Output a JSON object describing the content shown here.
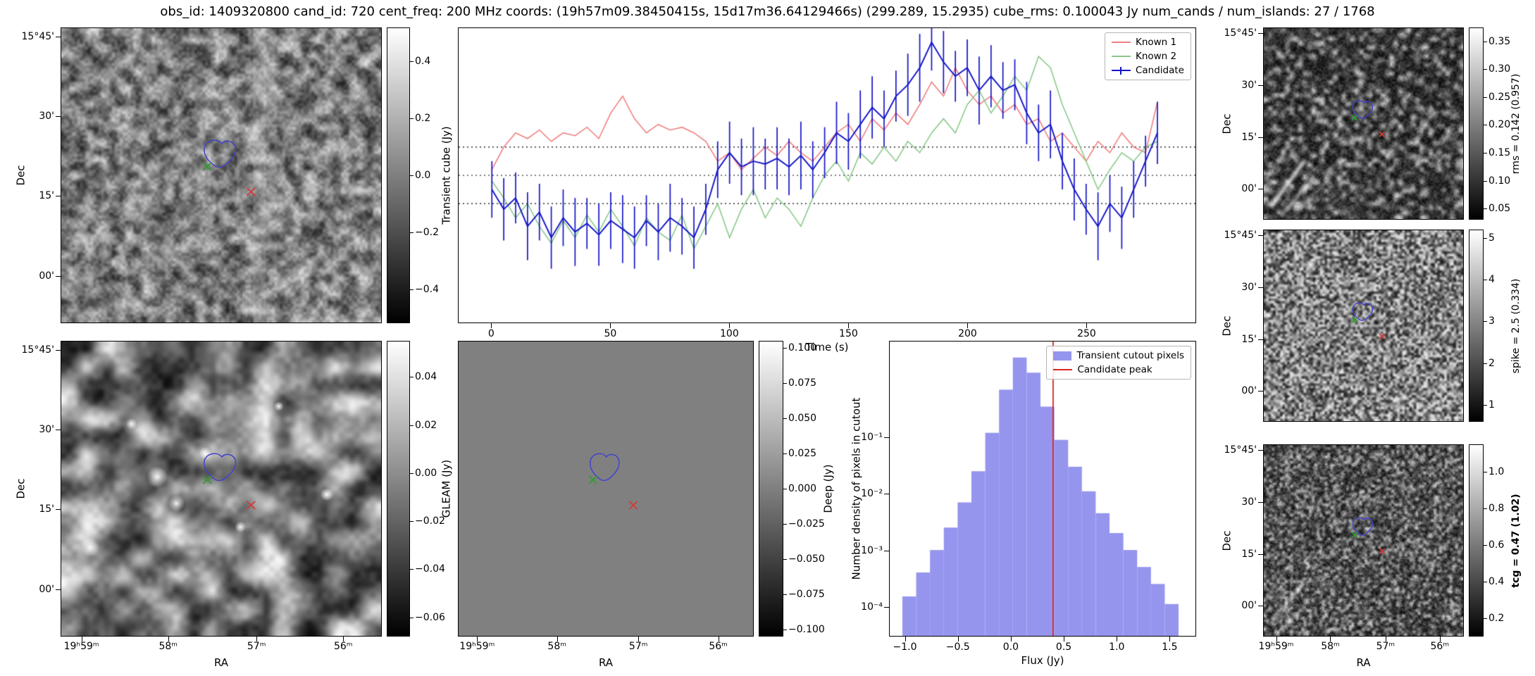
{
  "title": "obs_id: 1409320800 cand_id: 720 cent_freq: 200 MHz coords: (19h57m09.38450415s, 15d17m36.64129466s) (299.289, 15.2935) cube_rms: 0.100043 Jy num_cands / num_islands: 27 / 1768",
  "colors": {
    "known1": "#f08080",
    "known2": "#8bc98b",
    "candidate": "#1414c8",
    "hist_bar": "#9595ee",
    "candidate_peak_line": "#dd2222",
    "deep_gray": "#808080",
    "contour": "#4343cd",
    "green_x": "#2e9e2e",
    "red_x": "#d23a3a"
  },
  "axes": {
    "dec_label": "Dec",
    "ra_label": "RA",
    "dec_ticks": [
      "15°45'",
      "30'",
      "15'",
      "00'"
    ],
    "ra_ticks": [
      "19ʰ59ᵐ",
      "58ᵐ",
      "57ᵐ",
      "56ᵐ"
    ]
  },
  "image_panels": {
    "transient": {
      "colorbar_label": "Transient cube (Jy)",
      "colorbar_ticks": [
        "0.4",
        "0.2",
        "0.0",
        "−0.2",
        "−0.4"
      ],
      "bold": false
    },
    "gleam": {
      "colorbar_label": "GLEAM (Jy)",
      "colorbar_ticks": [
        "0.04",
        "0.02",
        "0.00",
        "−0.02",
        "−0.04",
        "−0.06"
      ],
      "bold": false
    },
    "deep": {
      "colorbar_label": "Deep (Jy)",
      "colorbar_ticks": [
        "0.100",
        "0.075",
        "0.050",
        "0.025",
        "0.000",
        "−0.025",
        "−0.050",
        "−0.075",
        "−0.100"
      ],
      "bold": false
    },
    "rms": {
      "colorbar_label": "rms = 0.142 (0.957)",
      "colorbar_ticks": [
        "0.35",
        "0.30",
        "0.25",
        "0.20",
        "0.15",
        "0.10",
        "0.05"
      ],
      "bold": false
    },
    "spike": {
      "colorbar_label": "spike = 2.5 (0.334)",
      "colorbar_ticks": [
        "5",
        "4",
        "3",
        "2",
        "1"
      ],
      "bold": false
    },
    "tcg": {
      "colorbar_label": "tcg = 0.47 (1.02)",
      "colorbar_ticks": [
        "1.0",
        "0.8",
        "0.6",
        "0.4",
        "0.2"
      ],
      "bold": true
    }
  },
  "chart_data": [
    {
      "type": "line",
      "title": "",
      "xlabel": "Time (s)",
      "ylabel": "Transient cube (Jy)",
      "xlim": [
        -14,
        296
      ],
      "ylim": [
        -0.52,
        0.52
      ],
      "x_ticks": [
        0,
        50,
        100,
        150,
        200,
        250
      ],
      "hlines_dotted": [
        0.1,
        0.0,
        -0.1
      ],
      "legend": [
        "Known 1",
        "Known 2",
        "Candidate"
      ],
      "legend_position": "top-right",
      "x": [
        0,
        5,
        10,
        15,
        20,
        25,
        30,
        35,
        40,
        45,
        50,
        55,
        60,
        65,
        70,
        75,
        80,
        85,
        90,
        95,
        100,
        105,
        110,
        115,
        120,
        125,
        130,
        135,
        140,
        145,
        150,
        155,
        160,
        165,
        170,
        175,
        180,
        185,
        190,
        195,
        200,
        205,
        210,
        215,
        220,
        225,
        230,
        235,
        240,
        245,
        250,
        255,
        260,
        265,
        270,
        275,
        280
      ],
      "series": [
        {
          "name": "Known 1",
          "values": [
            0.02,
            0.1,
            0.15,
            0.13,
            0.16,
            0.12,
            0.15,
            0.14,
            0.17,
            0.13,
            0.22,
            0.28,
            0.2,
            0.15,
            0.18,
            0.16,
            0.17,
            0.15,
            0.12,
            0.05,
            0.08,
            0.02,
            0.06,
            0.1,
            0.07,
            0.12,
            0.08,
            0.05,
            0.1,
            0.15,
            0.18,
            0.12,
            0.2,
            0.16,
            0.22,
            0.18,
            0.25,
            0.33,
            0.28,
            0.38,
            0.3,
            0.25,
            0.28,
            0.22,
            0.25,
            0.18,
            0.2,
            0.12,
            0.15,
            0.1,
            0.05,
            0.12,
            0.08,
            0.15,
            0.1,
            0.08,
            0.26
          ]
        },
        {
          "name": "Known 2",
          "values": [
            -0.02,
            -0.08,
            -0.15,
            -0.1,
            -0.18,
            -0.24,
            -0.16,
            -0.22,
            -0.14,
            -0.2,
            -0.12,
            -0.18,
            -0.25,
            -0.15,
            -0.2,
            -0.23,
            -0.14,
            -0.26,
            -0.18,
            -0.1,
            -0.22,
            -0.12,
            -0.05,
            -0.15,
            -0.08,
            -0.12,
            -0.18,
            -0.08,
            0.0,
            0.05,
            -0.02,
            0.08,
            0.04,
            0.1,
            0.05,
            0.12,
            0.08,
            0.15,
            0.2,
            0.15,
            0.25,
            0.3,
            0.22,
            0.28,
            0.35,
            0.3,
            0.42,
            0.38,
            0.25,
            0.15,
            0.05,
            -0.05,
            0.02,
            0.08,
            0.05,
            0.1,
            0.12
          ]
        },
        {
          "name": "Candidate",
          "values": [
            -0.05,
            -0.12,
            -0.08,
            -0.18,
            -0.13,
            -0.22,
            -0.15,
            -0.2,
            -0.17,
            -0.21,
            -0.16,
            -0.19,
            -0.22,
            -0.16,
            -0.2,
            -0.15,
            -0.18,
            -0.22,
            -0.12,
            0.02,
            0.08,
            0.03,
            0.05,
            0.04,
            0.06,
            0.03,
            0.07,
            0.02,
            0.08,
            0.15,
            0.12,
            0.18,
            0.24,
            0.2,
            0.28,
            0.32,
            0.38,
            0.47,
            0.4,
            0.35,
            0.38,
            0.3,
            0.35,
            0.3,
            0.32,
            0.22,
            0.15,
            0.18,
            0.05,
            -0.05,
            -0.12,
            -0.18,
            -0.1,
            -0.15,
            -0.05,
            0.05,
            0.15
          ],
          "errors": [
            0.1,
            0.11,
            0.09,
            0.12,
            0.1,
            0.11,
            0.1,
            0.12,
            0.09,
            0.11,
            0.1,
            0.12,
            0.11,
            0.09,
            0.1,
            0.12,
            0.1,
            0.11,
            0.09,
            0.1,
            0.11,
            0.1,
            0.12,
            0.09,
            0.11,
            0.1,
            0.12,
            0.1,
            0.09,
            0.11,
            0.1,
            0.12,
            0.11,
            0.1,
            0.09,
            0.11,
            0.12,
            0.1,
            0.11,
            0.09,
            0.1,
            0.12,
            0.11,
            0.1,
            0.09,
            0.11,
            0.1,
            0.12,
            0.1,
            0.11,
            0.09,
            0.12,
            0.1,
            0.11,
            0.1,
            0.09,
            0.11
          ]
        }
      ]
    },
    {
      "type": "bar",
      "xlabel": "Flux (Jy)",
      "ylabel": "Number density of pixels in cutout",
      "xlim": [
        -1.15,
        1.75
      ],
      "ylog": true,
      "ylim": [
        3e-05,
        5
      ],
      "x_ticks": [
        -1.0,
        -0.5,
        0.0,
        0.5,
        1.0,
        1.5
      ],
      "x_tick_labels": [
        "−1.0",
        "−0.5",
        "0.0",
        "0.5",
        "1.0",
        "1.5"
      ],
      "y_ticks_values": [
        0.1,
        0.01,
        0.001,
        0.0001
      ],
      "y_ticks_labels": [
        "10⁻¹",
        "10⁻²",
        "10⁻³",
        "10⁻⁴"
      ],
      "bin_edges": [
        -1.03,
        -0.899,
        -0.768,
        -0.637,
        -0.506,
        -0.375,
        -0.244,
        -0.113,
        0.018,
        0.149,
        0.28,
        0.411,
        0.542,
        0.673,
        0.804,
        0.935,
        1.066,
        1.197,
        1.328,
        1.459,
        1.59
      ],
      "values": [
        0.00015,
        0.0004,
        0.001,
        0.0025,
        0.007,
        0.025,
        0.12,
        0.7,
        2.6,
        1.4,
        0.35,
        0.09,
        0.03,
        0.011,
        0.0045,
        0.002,
        0.001,
        0.0005,
        0.00025,
        0.00011
      ],
      "candidate_peak_x": 0.4,
      "legend": [
        "Transient cutout pixels",
        "Candidate peak"
      ],
      "legend_position": "top-right"
    }
  ]
}
